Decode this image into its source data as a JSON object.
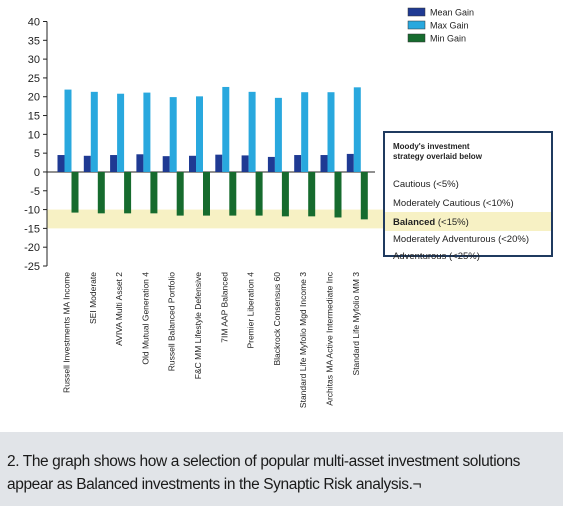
{
  "chart_data": {
    "type": "bar",
    "categories": [
      "Russell Investments MA Income",
      "SEI Moderate",
      "AVIVA Multi Asset 2",
      "Old Mutual Generation 4",
      "Russell Balanced Portfolio",
      "F&C MM Lifestyle Defensive",
      "7IM AAP Balanced",
      "Premier Liberation 4",
      "Blackrock Consensus 60",
      "Standard Life Myfolio Mgd Income 3",
      "Architas MA Active Intermediate Inc",
      "Standard Life Myfolio MM 3"
    ],
    "series": [
      {
        "name": "Mean Gain",
        "color": "#1f3a93",
        "values": [
          4.5,
          4.3,
          4.5,
          4.7,
          4.2,
          4.3,
          4.6,
          4.4,
          4.0,
          4.5,
          4.5,
          4.8
        ]
      },
      {
        "name": "Max Gain",
        "color": "#29a8de",
        "values": [
          21.9,
          21.3,
          20.8,
          21.1,
          19.9,
          20.1,
          22.6,
          21.3,
          19.7,
          21.2,
          21.2,
          22.5
        ]
      },
      {
        "name": "Min Gain",
        "color": "#166b2e",
        "values": [
          -10.8,
          -11.0,
          -11.0,
          -11.0,
          -11.6,
          -11.6,
          -11.6,
          -11.6,
          -11.8,
          -11.8,
          -12.1,
          -12.6
        ]
      }
    ],
    "ylim": [
      -25,
      40
    ],
    "yticks": [
      40,
      35,
      30,
      25,
      20,
      15,
      10,
      5,
      0,
      -5,
      -10,
      -15,
      -20,
      -25
    ],
    "grid": false,
    "legend_position": "top-right",
    "highlight_band": {
      "from": -15,
      "to": -10,
      "color": "#f7f1c4"
    }
  },
  "moodys": {
    "title_line1": "Moody's investment",
    "title_line2": "strategy overlaid below",
    "bands": [
      {
        "label": "Cautious (<5%)",
        "highlight": false
      },
      {
        "label": "Moderately Cautious (<10%)",
        "highlight": false
      },
      {
        "label_bold": "Balanced",
        "label_rest": " (<15%)",
        "highlight": true
      },
      {
        "label": "Moderately Adventurous (<20%)",
        "highlight": false
      },
      {
        "label": "Adventurous (<25%)",
        "highlight": false
      }
    ],
    "highlight_color": "#f7f1c4"
  },
  "caption": {
    "line1": "2. The graph shows how a selection of popular multi-asset investment solutions",
    "line2": "appear as Balanced investments in the Synaptic Risk analysis.¬"
  }
}
